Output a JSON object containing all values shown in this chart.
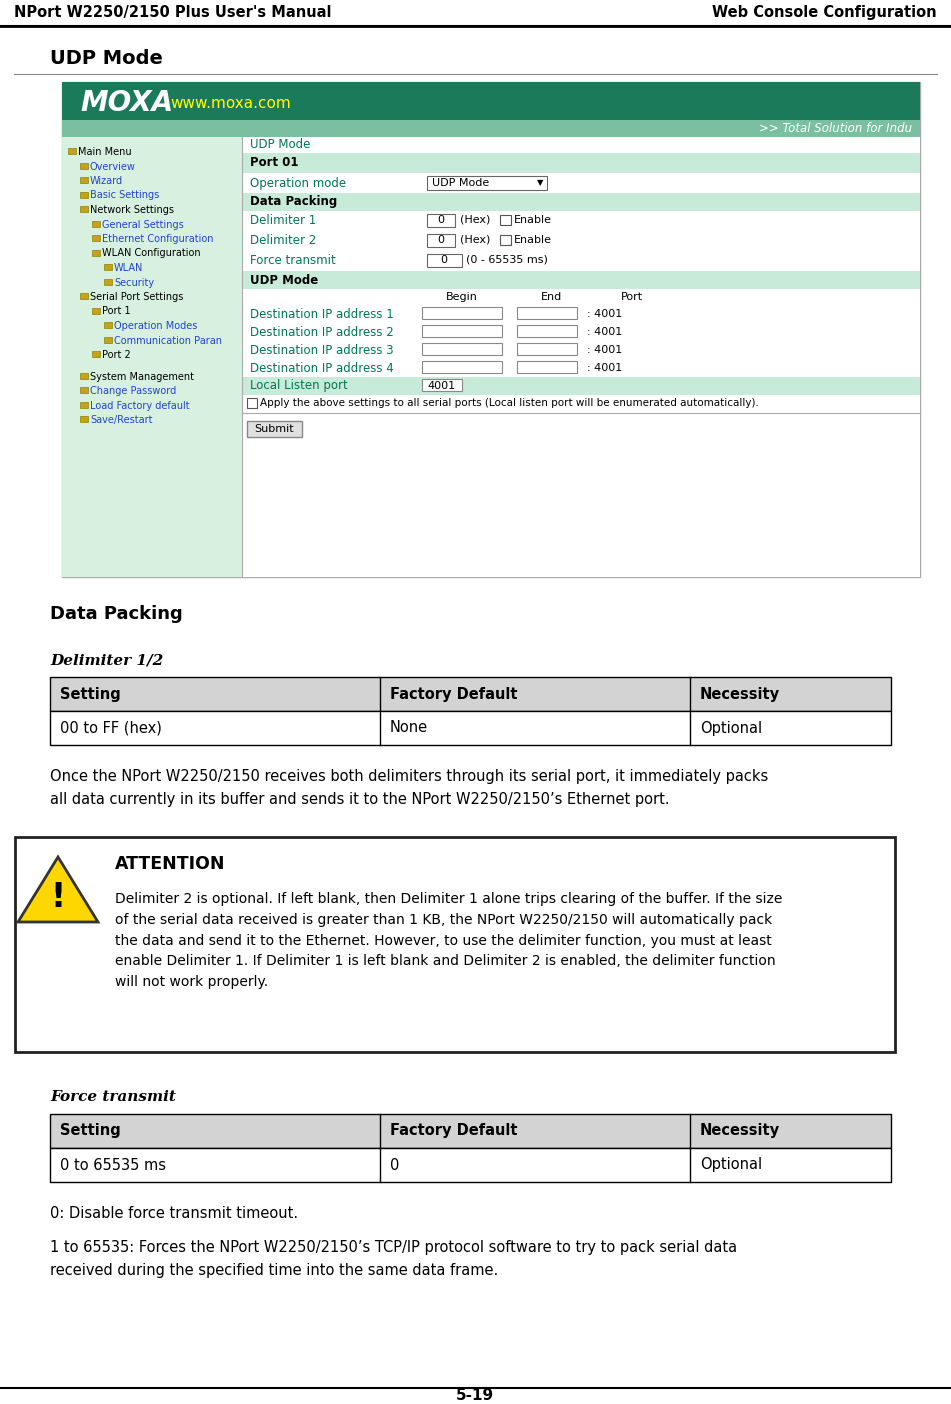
{
  "header_left": "NPort W2250/2150 Plus User's Manual",
  "header_right": "Web Console Configuration",
  "section_title": "UDP Mode",
  "data_packing_title": "Data Packing",
  "delimiter_subtitle": "Delimiter 1/2",
  "table1_headers": [
    "Setting",
    "Factory Default",
    "Necessity"
  ],
  "table1_row": [
    "00 to FF (hex)",
    "None",
    "Optional"
  ],
  "para1": "Once the NPort W2250/2150 receives both delimiters through its serial port, it immediately packs\nall data currently in its buffer and sends it to the NPort W2250/2150’s Ethernet port.",
  "attention_title": "ATTENTION",
  "attention_text": "Delimiter 2 is optional. If left blank, then Delimiter 1 alone trips clearing of the buffer. If the size\nof the serial data received is greater than 1 KB, the NPort W2250/2150 will automatically pack\nthe data and send it to the Ethernet. However, to use the delimiter function, you must at least\nenable Delimiter 1. If Delimiter 1 is left blank and Delimiter 2 is enabled, the delimiter function\nwill not work properly.",
  "force_transmit_subtitle": "Force transmit",
  "table2_headers": [
    "Setting",
    "Factory Default",
    "Necessity"
  ],
  "table2_row": [
    "0 to 65535 ms",
    "0",
    "Optional"
  ],
  "para2": "0: Disable force transmit timeout.",
  "para3": "1 to 65535: Forces the NPort W2250/2150’s TCP/IP protocol software to try to pack serial data\nreceived during the specified time into the same data frame.",
  "footer": "5-19",
  "bg_color": "#ffffff",
  "moxa_header_dark": "#1a7a5a",
  "moxa_header_light": "#7abfa0",
  "moxa_logo_color": "#ffffff",
  "moxa_url_color": "#ffff00",
  "menu_panel_color": "#d8f0e0",
  "content_bg": "#ffffff",
  "row_green_light": "#c8ead8",
  "row_green_label": "#007755",
  "table_header_bg": "#d3d3d3",
  "table_border": "#000000",
  "screenshot_border": "#aaaaaa",
  "screenshot_outer_bg": "#f5f5f5"
}
